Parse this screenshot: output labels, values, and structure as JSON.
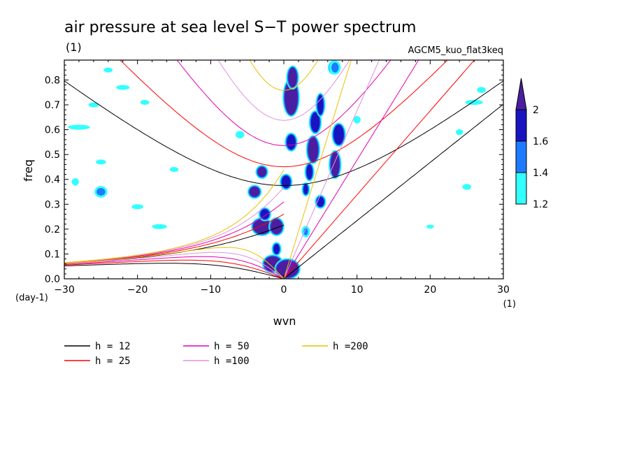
{
  "chart_data": {
    "type": "contour",
    "title": "air pressure at sea level S−T power spectrum",
    "subtitle": "(1)",
    "run_label": "AGCM5_kuo_flat3keq",
    "xlabel": "wvn",
    "ylabel": "freq",
    "x_unit": "(1)",
    "y_unit": "(day-1)",
    "xlim": [
      -30,
      30
    ],
    "ylim": [
      0,
      0.88
    ],
    "x_ticks": [
      -30,
      -20,
      -10,
      0,
      10,
      20,
      30
    ],
    "y_ticks": [
      0.0,
      0.1,
      0.2,
      0.3,
      0.4,
      0.5,
      0.6,
      0.7,
      0.8
    ],
    "x_tick_labels": [
      "−30",
      "−20",
      "−10",
      "0",
      "10",
      "20",
      "30"
    ],
    "y_tick_labels": [
      "0.0",
      "0.1",
      "0.2",
      "0.3",
      "0.4",
      "0.5",
      "0.6",
      "0.7",
      "0.8"
    ],
    "colorbar": {
      "levels": [
        1.2,
        1.4,
        1.6,
        2
      ],
      "labels": [
        "1.2",
        "1.4",
        "1.6",
        "2"
      ],
      "colors": [
        "#33ffff",
        "#1e7bff",
        "#1a14c0",
        "#4a1ea0"
      ],
      "extend": "max"
    },
    "dispersion_curves": [
      {
        "name": "h = 12",
        "h": 12,
        "color": "#000000"
      },
      {
        "name": "h = 25",
        "h": 25,
        "color": "#ff0000"
      },
      {
        "name": "h = 50",
        "h": 50,
        "color": "#e000b0"
      },
      {
        "name": "h =100",
        "h": 100,
        "color": "#e090e0"
      },
      {
        "name": "h =200",
        "h": 200,
        "color": "#e8c000"
      }
    ],
    "features": [
      {
        "x": 1.0,
        "y": 0.73,
        "rx": 0.9,
        "ry": 0.07,
        "level": 2
      },
      {
        "x": 1.2,
        "y": 0.81,
        "rx": 0.6,
        "ry": 0.04,
        "level": 2
      },
      {
        "x": 4.0,
        "y": 0.52,
        "rx": 0.7,
        "ry": 0.05,
        "level": 2
      },
      {
        "x": 4.3,
        "y": 0.63,
        "rx": 0.6,
        "ry": 0.04,
        "level": 1.6
      },
      {
        "x": 5.0,
        "y": 0.7,
        "rx": 0.4,
        "ry": 0.04,
        "level": 1.6
      },
      {
        "x": 7.0,
        "y": 0.46,
        "rx": 0.6,
        "ry": 0.05,
        "level": 2
      },
      {
        "x": 7.5,
        "y": 0.58,
        "rx": 0.7,
        "ry": 0.04,
        "level": 1.6
      },
      {
        "x": 6.8,
        "y": 0.85,
        "rx": 0.5,
        "ry": 0.02,
        "level": 1.6
      },
      {
        "x": 1.0,
        "y": 0.55,
        "rx": 0.6,
        "ry": 0.03,
        "level": 1.6
      },
      {
        "x": 3.5,
        "y": 0.43,
        "rx": 0.4,
        "ry": 0.03,
        "level": 1.6
      },
      {
        "x": 0.3,
        "y": 0.39,
        "rx": 0.6,
        "ry": 0.025,
        "level": 1.6
      },
      {
        "x": 3.0,
        "y": 0.36,
        "rx": 0.3,
        "ry": 0.02,
        "level": 1.6
      },
      {
        "x": -4.0,
        "y": 0.35,
        "rx": 0.7,
        "ry": 0.02,
        "level": 2
      },
      {
        "x": -3.0,
        "y": 0.43,
        "rx": 0.6,
        "ry": 0.02,
        "level": 2
      },
      {
        "x": 5.0,
        "y": 0.31,
        "rx": 0.5,
        "ry": 0.02,
        "level": 1.6
      },
      {
        "x": -3.0,
        "y": 0.21,
        "rx": 1.2,
        "ry": 0.03,
        "level": 2
      },
      {
        "x": -2.6,
        "y": 0.26,
        "rx": 0.6,
        "ry": 0.02,
        "level": 1.6
      },
      {
        "x": -1.0,
        "y": 0.21,
        "rx": 0.8,
        "ry": 0.03,
        "level": 2
      },
      {
        "x": 3.0,
        "y": 0.19,
        "rx": 0.3,
        "ry": 0.015,
        "level": 1.4
      },
      {
        "x": -1.0,
        "y": 0.12,
        "rx": 0.4,
        "ry": 0.02,
        "level": 1.6
      },
      {
        "x": -1.5,
        "y": 0.06,
        "rx": 1.2,
        "ry": 0.03,
        "level": 2
      },
      {
        "x": 0.5,
        "y": 0.04,
        "rx": 1.5,
        "ry": 0.035,
        "level": 2
      },
      {
        "x": 7.0,
        "y": 0.85,
        "rx": 0.5,
        "ry": 0.02,
        "level": 1.4
      },
      {
        "x": 10.0,
        "y": 0.64,
        "rx": 0.5,
        "ry": 0.015,
        "level": 1.2
      },
      {
        "x": -6.0,
        "y": 0.58,
        "rx": 0.6,
        "ry": 0.015,
        "level": 1.2
      },
      {
        "x": -25.0,
        "y": 0.35,
        "rx": 0.6,
        "ry": 0.015,
        "level": 1.4
      },
      {
        "x": -28.0,
        "y": 0.61,
        "rx": 1.5,
        "ry": 0.01,
        "level": 1.2
      },
      {
        "x": -28.5,
        "y": 0.39,
        "rx": 0.5,
        "ry": 0.015,
        "level": 1.2
      },
      {
        "x": -20.0,
        "y": 0.29,
        "rx": 0.8,
        "ry": 0.01,
        "level": 1.2
      },
      {
        "x": -22.0,
        "y": 0.77,
        "rx": 0.9,
        "ry": 0.01,
        "level": 1.2
      },
      {
        "x": -24.0,
        "y": 0.84,
        "rx": 0.6,
        "ry": 0.01,
        "level": 1.2
      },
      {
        "x": -26.0,
        "y": 0.7,
        "rx": 0.7,
        "ry": 0.01,
        "level": 1.2
      },
      {
        "x": -25.0,
        "y": 0.47,
        "rx": 0.7,
        "ry": 0.01,
        "level": 1.2
      },
      {
        "x": -17.0,
        "y": 0.21,
        "rx": 1.0,
        "ry": 0.01,
        "level": 1.2
      },
      {
        "x": -15.0,
        "y": 0.44,
        "rx": 0.6,
        "ry": 0.01,
        "level": 1.2
      },
      {
        "x": 24.0,
        "y": 0.59,
        "rx": 0.5,
        "ry": 0.012,
        "level": 1.2
      },
      {
        "x": 26.0,
        "y": 0.71,
        "rx": 1.2,
        "ry": 0.01,
        "level": 1.2
      },
      {
        "x": 27.0,
        "y": 0.76,
        "rx": 0.6,
        "ry": 0.012,
        "level": 1.2
      },
      {
        "x": 25.0,
        "y": 0.37,
        "rx": 0.6,
        "ry": 0.012,
        "level": 1.2
      },
      {
        "x": 20.0,
        "y": 0.21,
        "rx": 0.5,
        "ry": 0.008,
        "level": 1.2
      },
      {
        "x": -19.0,
        "y": 0.71,
        "rx": 0.6,
        "ry": 0.01,
        "level": 1.2
      }
    ]
  }
}
